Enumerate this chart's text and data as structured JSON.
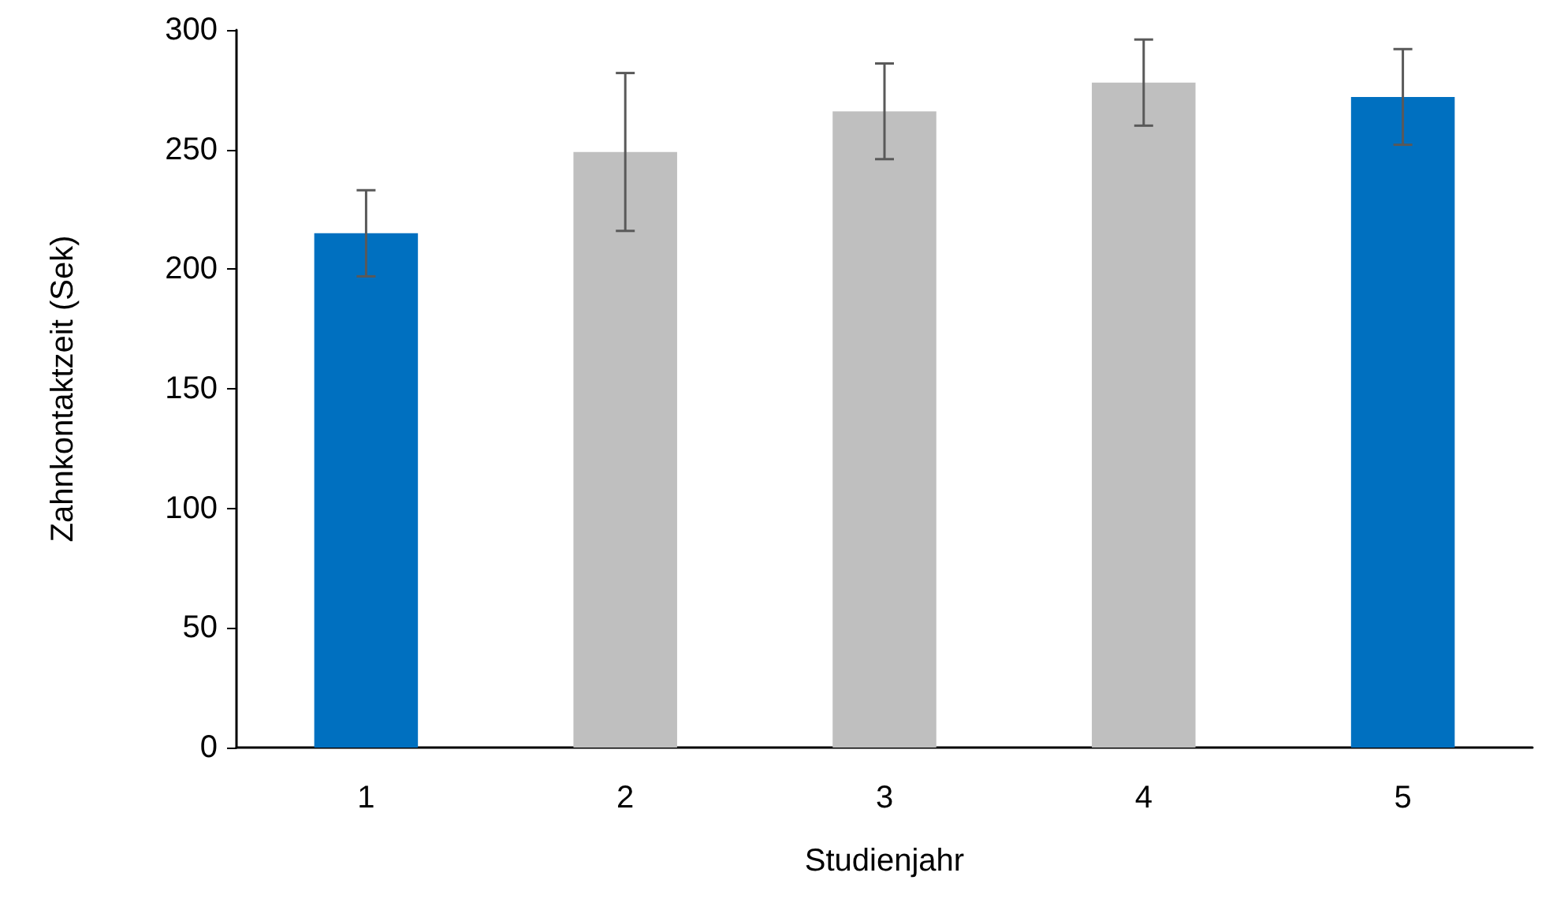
{
  "chart_data": {
    "type": "bar",
    "xlabel": "Studienjahr",
    "ylabel": "Zahnkontaktzeit (Sek)",
    "categories": [
      "1",
      "2",
      "3",
      "4",
      "5"
    ],
    "values": [
      215,
      249,
      266,
      278,
      272
    ],
    "colors": [
      "#0070c0",
      "#bfbfbf",
      "#bfbfbf",
      "#bfbfbf",
      "#0070c0"
    ],
    "errors": [
      18,
      33,
      20,
      18,
      20
    ],
    "ylim": [
      0,
      300
    ],
    "yticks": [
      0,
      50,
      100,
      150,
      200,
      250,
      300
    ],
    "grid": false
  }
}
